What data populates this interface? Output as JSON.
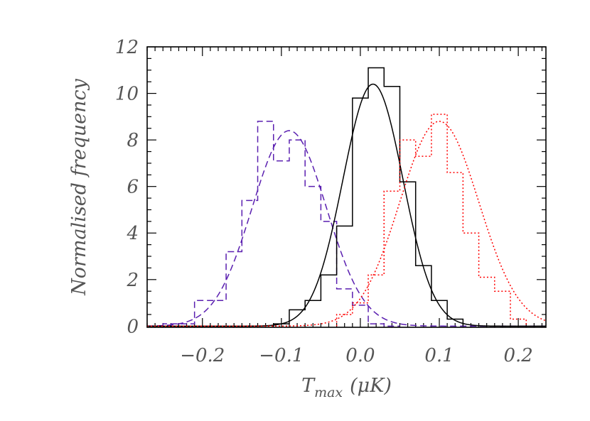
{
  "chart_data": {
    "type": "histogram",
    "title": "",
    "xlabel": "T_max (μK)",
    "xlabel_main": "T",
    "xlabel_sub": "max",
    "xlabel_unit": "(μK)",
    "ylabel": "Normalised frequency",
    "xlim": [
      -0.27,
      0.235
    ],
    "ylim": [
      -0.05,
      12.0
    ],
    "xticks": [
      -0.2,
      -0.1,
      0.0,
      0.1,
      0.2
    ],
    "xtick_labels": [
      "−0.2",
      "−0.1",
      "0.0",
      "0.1",
      "0.2"
    ],
    "yticks": [
      0,
      2,
      4,
      6,
      8,
      10,
      12
    ],
    "ytick_labels": [
      "0",
      "2",
      "4",
      "6",
      "8",
      "10",
      "12"
    ],
    "grid": false,
    "legend": false,
    "series": [
      {
        "color": "#5a1fb0",
        "dash": "dashed",
        "bin_width": 0.02,
        "hist_edges": [
          -0.25,
          -0.23,
          -0.21,
          -0.19,
          -0.17,
          -0.15,
          -0.13,
          -0.11,
          -0.09,
          -0.07,
          -0.05,
          -0.03,
          -0.01,
          0.01,
          0.03,
          0.05
        ],
        "hist_values": [
          0.1,
          0.1,
          1.1,
          1.1,
          3.2,
          5.4,
          8.8,
          7.1,
          8.0,
          6.0,
          4.5,
          1.6,
          0.9,
          0.1,
          0.0
        ],
        "gaussian": {
          "mean": -0.09,
          "sigma": 0.047,
          "amp": 8.4
        }
      },
      {
        "color": "#000000",
        "dash": "solid",
        "bin_width": 0.02,
        "hist_edges": [
          -0.11,
          -0.09,
          -0.07,
          -0.05,
          -0.03,
          -0.01,
          0.01,
          0.03,
          0.05,
          0.07,
          0.09,
          0.11,
          0.13
        ],
        "hist_values": [
          0.1,
          0.7,
          1.1,
          2.2,
          4.3,
          9.8,
          11.1,
          10.3,
          6.2,
          2.6,
          1.1,
          0.3
        ],
        "gaussian": {
          "mean": 0.016,
          "sigma": 0.038,
          "amp": 10.4
        }
      },
      {
        "color": "#ff0000",
        "dash": "dotted",
        "bin_width": 0.02,
        "hist_edges": [
          -0.03,
          -0.01,
          0.01,
          0.03,
          0.05,
          0.07,
          0.09,
          0.11,
          0.13,
          0.15,
          0.17,
          0.19,
          0.21
        ],
        "hist_values": [
          0.5,
          1.0,
          2.2,
          5.8,
          8.0,
          7.3,
          9.1,
          6.6,
          4.0,
          2.1,
          1.5,
          0.3
        ],
        "gaussian": {
          "mean": 0.1,
          "sigma": 0.05,
          "amp": 8.8
        }
      }
    ]
  }
}
